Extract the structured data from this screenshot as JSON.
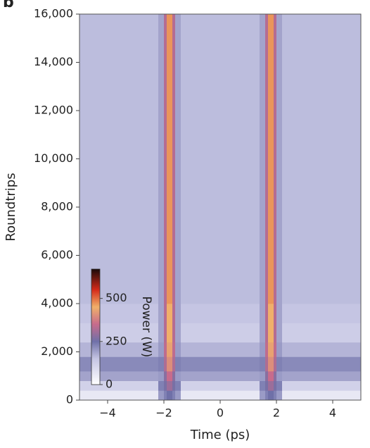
{
  "chart_data": {
    "type": "heatmap",
    "panel_label": "b",
    "xlabel": "Time (ps)",
    "ylabel": "Roundtrips",
    "xlim": [
      -5,
      5
    ],
    "ylim": [
      0,
      16000
    ],
    "xticks": [
      {
        "value": -4,
        "label": "−4"
      },
      {
        "value": -2,
        "label": "−2"
      },
      0,
      2,
      4
    ],
    "yticks": [
      0,
      {
        "value": 2000,
        "label": "2,000"
      },
      {
        "value": 4000,
        "label": "4,000"
      },
      {
        "value": 6000,
        "label": "6,000"
      },
      {
        "value": 8000,
        "label": "8,000"
      },
      {
        "value": 10000,
        "label": "10,000"
      },
      {
        "value": 12000,
        "label": "12,000"
      },
      {
        "value": 14000,
        "label": "14,000"
      },
      {
        "value": 16000,
        "label": "16,000"
      }
    ],
    "x_edges": [
      -5,
      -2.2,
      -2.0,
      -1.9,
      -1.7,
      -1.6,
      -1.4,
      1.4,
      1.6,
      1.7,
      1.9,
      2.0,
      2.2,
      5
    ],
    "y_edges": [
      0,
      400,
      800,
      1200,
      1800,
      2400,
      3200,
      4000,
      16000
    ],
    "z": [
      [
        60,
        200,
        230,
        250,
        230,
        200,
        60,
        200,
        230,
        250,
        230,
        200,
        60
      ],
      [
        120,
        230,
        260,
        300,
        260,
        230,
        120,
        230,
        260,
        300,
        260,
        230,
        120
      ],
      [
        190,
        200,
        280,
        350,
        280,
        200,
        190,
        200,
        280,
        350,
        280,
        200,
        190
      ],
      [
        220,
        230,
        320,
        400,
        320,
        230,
        220,
        230,
        320,
        400,
        320,
        230,
        220
      ],
      [
        170,
        200,
        340,
        430,
        340,
        200,
        170,
        200,
        340,
        430,
        340,
        200,
        170
      ],
      [
        130,
        190,
        330,
        450,
        330,
        190,
        130,
        190,
        330,
        450,
        330,
        190,
        130
      ],
      [
        150,
        190,
        330,
        450,
        330,
        190,
        150,
        190,
        330,
        450,
        330,
        190,
        150
      ],
      [
        160,
        190,
        330,
        470,
        330,
        190,
        160,
        190,
        330,
        470,
        330,
        190,
        160
      ]
    ],
    "zlim": [
      0,
      670
    ],
    "colorscale": [
      {
        "value": 0,
        "color": "#ffffff"
      },
      {
        "value": 150,
        "color": "#c5c5e3"
      },
      {
        "value": 250,
        "color": "#6f70a8"
      },
      {
        "value": 350,
        "color": "#c76b8c"
      },
      {
        "value": 450,
        "color": "#f0b06a"
      },
      {
        "value": 550,
        "color": "#d42a1a"
      },
      {
        "value": 670,
        "color": "#1a0a0a"
      }
    ],
    "colorbar_ticks": [
      0,
      250,
      500
    ],
    "colorbar_label": "Power (W)"
  }
}
